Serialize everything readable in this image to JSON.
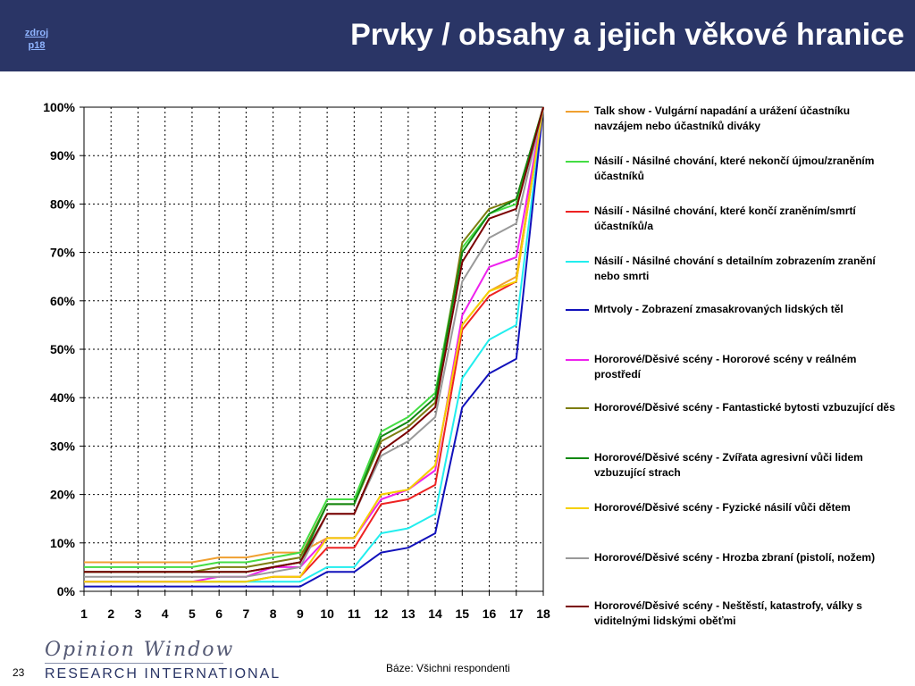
{
  "header": {
    "title": "Prvky / obsahy a jejich věkové hranice",
    "source_link_line1": "zdroj",
    "source_link_line2": "p18"
  },
  "footer": {
    "page_number": "23",
    "base_note": "Báze: Všichni respondenti",
    "logo_script": "Opinion Window",
    "logo_sub": "RESEARCH INTERNATIONAL"
  },
  "chart_data": {
    "type": "line",
    "title": "",
    "xlabel": "",
    "ylabel": "",
    "x": [
      1,
      2,
      3,
      4,
      5,
      6,
      7,
      8,
      9,
      10,
      11,
      12,
      13,
      14,
      15,
      16,
      17,
      18
    ],
    "y_tick_labels": [
      "0%",
      "10%",
      "20%",
      "30%",
      "40%",
      "50%",
      "60%",
      "70%",
      "80%",
      "90%",
      "100%"
    ],
    "ylim": [
      0,
      100
    ],
    "grid": true,
    "legend_position": "right",
    "series": [
      {
        "name": "Talk show - Vulgární napadání a urážení účastníku navzájem nebo účastníků diváky",
        "color": "#f0a030",
        "values": [
          6,
          6,
          6,
          6,
          6,
          7,
          7,
          8,
          8,
          11,
          11,
          20,
          21,
          26,
          55,
          62,
          65,
          100
        ]
      },
      {
        "name": "Násilí - Násilné chování, které nekončí újmou/zraněním účastníků",
        "color": "#44dd44",
        "values": [
          5,
          5,
          5,
          5,
          5,
          6,
          6,
          7,
          8,
          19,
          19,
          33,
          36,
          41,
          71,
          78,
          80,
          100
        ]
      },
      {
        "name": "Násilí - Násilné chování, které končí zraněním/smrtí účastníků/a",
        "color": "#ee2222",
        "values": [
          2,
          2,
          2,
          2,
          2,
          2,
          2,
          3,
          3,
          9,
          9,
          18,
          19,
          22,
          54,
          61,
          64,
          100
        ]
      },
      {
        "name": "Násilí - Násilné chování s detailním zobrazením zranění nebo smrti",
        "color": "#22eeee",
        "values": [
          2,
          2,
          2,
          2,
          2,
          2,
          2,
          2,
          2,
          5,
          5,
          12,
          13,
          16,
          44,
          52,
          55,
          100
        ]
      },
      {
        "name": "Mrtvoly - Zobrazení zmasakrovaných lidských těl",
        "color": "#1111bb",
        "values": [
          1,
          1,
          1,
          1,
          1,
          1,
          1,
          1,
          1,
          4,
          4,
          8,
          9,
          12,
          38,
          45,
          48,
          100
        ]
      },
      {
        "name": "Hororové/Děsivé scény - Hororové scény v reálném prostředí",
        "color": "#ee22ee",
        "values": [
          2,
          2,
          2,
          2,
          2,
          3,
          3,
          5,
          5,
          11,
          11,
          19,
          21,
          25,
          57,
          67,
          69,
          100
        ]
      },
      {
        "name": "Hororové/Děsivé scény - Fantastické bytosti vzbuzující děs",
        "color": "#7d7d10",
        "values": [
          4,
          4,
          4,
          4,
          4,
          5,
          5,
          6,
          7,
          18,
          18,
          31,
          34,
          39,
          72,
          79,
          81,
          100
        ]
      },
      {
        "name": "Hororové/Děsivé scény - Zvířata agresivní vůči lidem vzbuzující strach",
        "color": "#118811",
        "values": [
          4,
          4,
          4,
          4,
          4,
          4,
          4,
          5,
          6,
          18,
          18,
          32,
          35,
          40,
          70,
          78,
          81,
          100
        ]
      },
      {
        "name": "Hororové/Děsivé scény - Fyzické násilí vůči dětem",
        "color": "#f5d000",
        "values": [
          2,
          2,
          2,
          2,
          2,
          2,
          2,
          3,
          3,
          11,
          11,
          20,
          21,
          26,
          55,
          62,
          64,
          100
        ]
      },
      {
        "name": "Hororové/Děsivé scény - Hrozba zbraní (pistolí, nožem)",
        "color": "#999999",
        "values": [
          3,
          3,
          3,
          3,
          3,
          3,
          3,
          4,
          5,
          16,
          16,
          28,
          31,
          36,
          64,
          73,
          76,
          100
        ]
      },
      {
        "name": "Hororové/Děsivé scény - Neštěstí, katastrofy, války s viditelnými lidskými oběťmi",
        "color": "#7a0000",
        "values": [
          4,
          4,
          4,
          4,
          4,
          4,
          4,
          5,
          6,
          16,
          16,
          29,
          33,
          38,
          68,
          77,
          79,
          100
        ]
      }
    ]
  }
}
